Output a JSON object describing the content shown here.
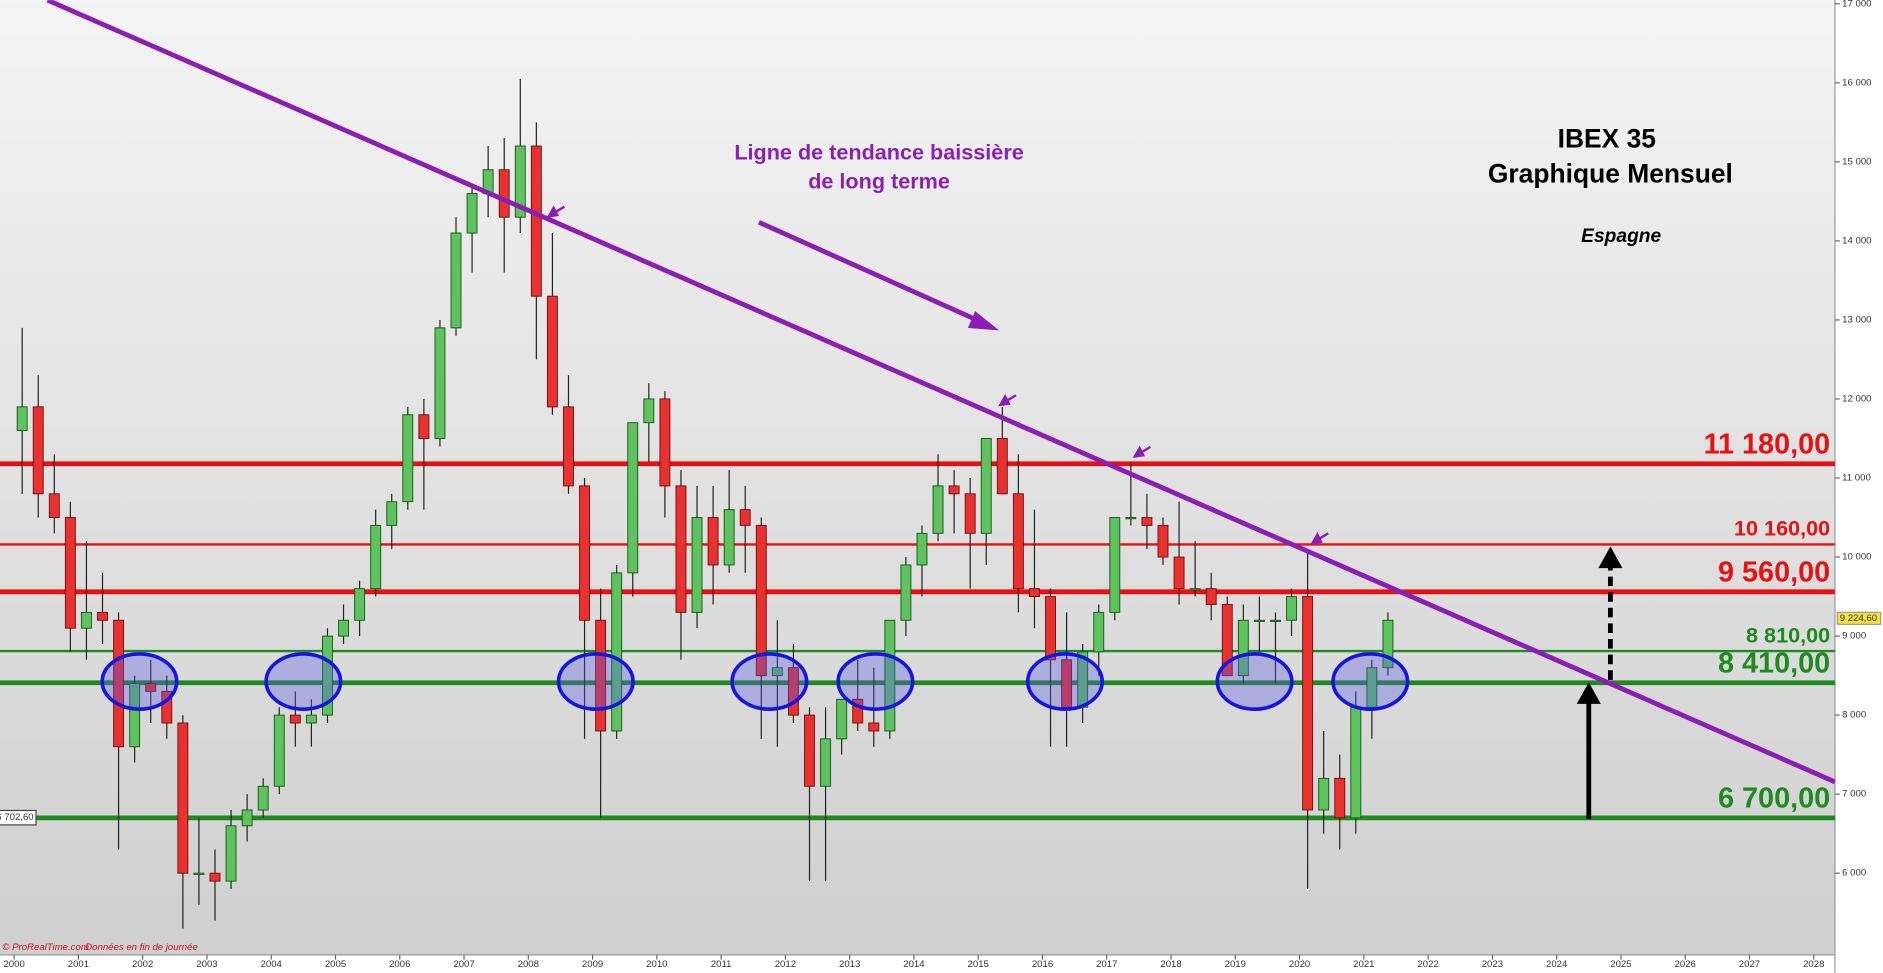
{
  "chart_data": {
    "type": "candlestick",
    "title": "IBEX 35",
    "subtitle": "Graphique Mensuel",
    "region": "Espagne",
    "annotation": [
      "Ligne de tendance baissière",
      "de long terme"
    ],
    "footer": [
      "© ProRealTime.com",
      "Données en fin de journée"
    ],
    "x": [
      2000.125,
      2000.375,
      2000.625,
      2000.875,
      2001.125,
      2001.375,
      2001.625,
      2001.875,
      2002.125,
      2002.375,
      2002.625,
      2002.875,
      2003.125,
      2003.375,
      2003.625,
      2003.875,
      2004.125,
      2004.375,
      2004.625,
      2004.875,
      2005.125,
      2005.375,
      2005.625,
      2005.875,
      2006.125,
      2006.375,
      2006.625,
      2006.875,
      2007.125,
      2007.375,
      2007.625,
      2007.875,
      2008.125,
      2008.375,
      2008.625,
      2008.875,
      2009.125,
      2009.375,
      2009.625,
      2009.875,
      2010.125,
      2010.375,
      2010.625,
      2010.875,
      2011.125,
      2011.375,
      2011.625,
      2011.875,
      2012.125,
      2012.375,
      2012.625,
      2012.875,
      2013.125,
      2013.375,
      2013.625,
      2013.875,
      2014.125,
      2014.375,
      2014.625,
      2014.875,
      2015.125,
      2015.375,
      2015.625,
      2015.875,
      2016.125,
      2016.375,
      2016.625,
      2016.875,
      2017.125,
      2017.375,
      2017.625,
      2017.875,
      2018.125,
      2018.375,
      2018.625,
      2018.875,
      2019.125,
      2019.375,
      2019.625,
      2019.875,
      2020.125,
      2020.375,
      2020.625,
      2020.875,
      2021.125,
      2021.375
    ],
    "open": [
      11600,
      11900,
      10800,
      10500,
      9100,
      9300,
      9200,
      7600,
      8400,
      8300,
      7900,
      6000,
      6000,
      5900,
      6600,
      6800,
      7100,
      8000,
      7900,
      8000,
      9000,
      9200,
      9600,
      10400,
      10700,
      11800,
      11500,
      12900,
      14100,
      14600,
      14900,
      14300,
      15200,
      13300,
      11900,
      10900,
      9200,
      7800,
      9800,
      11700,
      12000,
      10900,
      9300,
      10500,
      9900,
      10600,
      10400,
      8500,
      8600,
      8000,
      7100,
      7700,
      8200,
      7900,
      7800,
      9200,
      9900,
      10300,
      10900,
      10800,
      10300,
      11500,
      10800,
      9600,
      9500,
      8700,
      8100,
      8800,
      9300,
      10500,
      10500,
      10400,
      10000,
      9600,
      9600,
      9400,
      8500,
      9200,
      9200,
      9200,
      9500,
      6800,
      7200,
      6700,
      8100,
      8600
    ],
    "high": [
      12900,
      12300,
      11300,
      10700,
      10200,
      9800,
      9300,
      8500,
      8700,
      8500,
      8000,
      6700,
      6300,
      6800,
      7000,
      7200,
      8100,
      8300,
      8200,
      9100,
      9400,
      9700,
      10600,
      10800,
      11900,
      12000,
      13000,
      14300,
      14700,
      15200,
      15300,
      16050,
      15500,
      14100,
      12300,
      11000,
      9600,
      9900,
      11700,
      12200,
      12100,
      11100,
      10900,
      10900,
      11100,
      10900,
      10500,
      9200,
      8900,
      8100,
      8100,
      8200,
      8700,
      8600,
      9200,
      10000,
      10400,
      11300,
      11100,
      11000,
      11500,
      11900,
      11300,
      10600,
      9600,
      9300,
      8900,
      9400,
      10500,
      11200,
      10800,
      10500,
      10700,
      10200,
      9800,
      9500,
      9400,
      9500,
      9300,
      9600,
      10100,
      7800,
      7500,
      8300,
      8700,
      9300
    ],
    "low": [
      10800,
      10500,
      10300,
      8800,
      8700,
      8900,
      6300,
      7400,
      7900,
      7700,
      5300,
      5600,
      5400,
      5800,
      6400,
      6700,
      7000,
      7600,
      7600,
      7900,
      8900,
      9000,
      9500,
      10100,
      10600,
      10600,
      11400,
      12800,
      13600,
      14300,
      13600,
      14100,
      12500,
      11800,
      10800,
      7700,
      6700,
      7700,
      9500,
      11200,
      10500,
      8700,
      9100,
      9400,
      9800,
      9800,
      7700,
      7600,
      7900,
      5900,
      5900,
      7500,
      7800,
      7600,
      7700,
      9000,
      9500,
      10200,
      10300,
      9600,
      9900,
      10800,
      9300,
      9100,
      7600,
      7600,
      7900,
      8500,
      9200,
      10400,
      10100,
      9900,
      9400,
      9500,
      9200,
      8500,
      8400,
      8800,
      8400,
      9000,
      5800,
      6500,
      6300,
      6500,
      7700,
      8500
    ],
    "close": [
      11900,
      10800,
      10500,
      9100,
      9300,
      9200,
      7600,
      8400,
      8300,
      7900,
      6000,
      6000,
      5900,
      6600,
      6800,
      7100,
      8000,
      7900,
      8000,
      9000,
      9200,
      9600,
      10400,
      10700,
      11800,
      11500,
      12900,
      14100,
      14600,
      14900,
      14300,
      15200,
      13300,
      11900,
      10900,
      9200,
      7800,
      9800,
      11700,
      12000,
      10900,
      9300,
      10500,
      9900,
      10600,
      10400,
      8500,
      8600,
      8000,
      7100,
      7700,
      8200,
      7900,
      7800,
      9200,
      9900,
      10300,
      10900,
      10800,
      10300,
      11500,
      10800,
      9600,
      9500,
      8700,
      8100,
      8800,
      9300,
      10500,
      10500,
      10400,
      10000,
      9600,
      9600,
      9400,
      8500,
      9200,
      9200,
      9200,
      9500,
      6800,
      7200,
      6700,
      8100,
      8600,
      9200
    ],
    "up_color": "#5ec35e",
    "down_color": "#e8322f",
    "xlim": [
      1999.78,
      2028.33
    ],
    "ylim": [
      4967,
      17046
    ],
    "xticks": [
      2000,
      2001,
      2002,
      2003,
      2004,
      2005,
      2006,
      2007,
      2008,
      2009,
      2010,
      2011,
      2012,
      2013,
      2014,
      2015,
      2016,
      2017,
      2018,
      2019,
      2020,
      2021,
      2022,
      2023,
      2024,
      2025,
      2026,
      2027,
      2028
    ],
    "yticks": [
      {
        "value": 6000,
        "label": "6 000"
      },
      {
        "value": 7000,
        "label": "7 000"
      },
      {
        "value": 8000,
        "label": "8 000"
      },
      {
        "value": 9000,
        "label": "9 000"
      },
      {
        "value": 10000,
        "label": "10 000"
      },
      {
        "value": 11000,
        "label": "11 000"
      },
      {
        "value": 12000,
        "label": "12 000"
      },
      {
        "value": 13000,
        "label": "13 000"
      },
      {
        "value": 14000,
        "label": "14 000"
      },
      {
        "value": 15000,
        "label": "15 000"
      },
      {
        "value": 16000,
        "label": "16 000"
      },
      {
        "value": 17000,
        "label": "17 000"
      }
    ],
    "levels": [
      {
        "value": 11180,
        "label": "11 180,00",
        "color": "#e81010",
        "style": "thick"
      },
      {
        "value": 10160,
        "label": "10 160,00",
        "color": "#e81010",
        "style": "thin"
      },
      {
        "value": 9560,
        "label": "9 560,00",
        "color": "#e81010",
        "style": "thick"
      },
      {
        "value": 8810,
        "label": "8 810,00",
        "color": "#1f8a1f",
        "style": "thin"
      },
      {
        "value": 8410,
        "label": "8 410,00",
        "color": "#1f8a1f",
        "style": "thick"
      },
      {
        "value": 6700,
        "label": "6 700,00",
        "color": "#1f8a1f",
        "style": "thick"
      }
    ],
    "trendline": {
      "x": [
        2000.52,
        2028.33
      ],
      "y": [
        17046,
        7155
      ],
      "color": "#8b1fb5"
    },
    "support_zones": [
      2001.95,
      2004.5,
      2009.05,
      2011.75,
      2013.4,
      2016.35,
      2019.3,
      2021.1
    ],
    "last_price": {
      "value": 9224.6,
      "label": "9 224,60"
    },
    "cursor_price": {
      "value": 6702.6,
      "label": "6 702,60"
    }
  }
}
